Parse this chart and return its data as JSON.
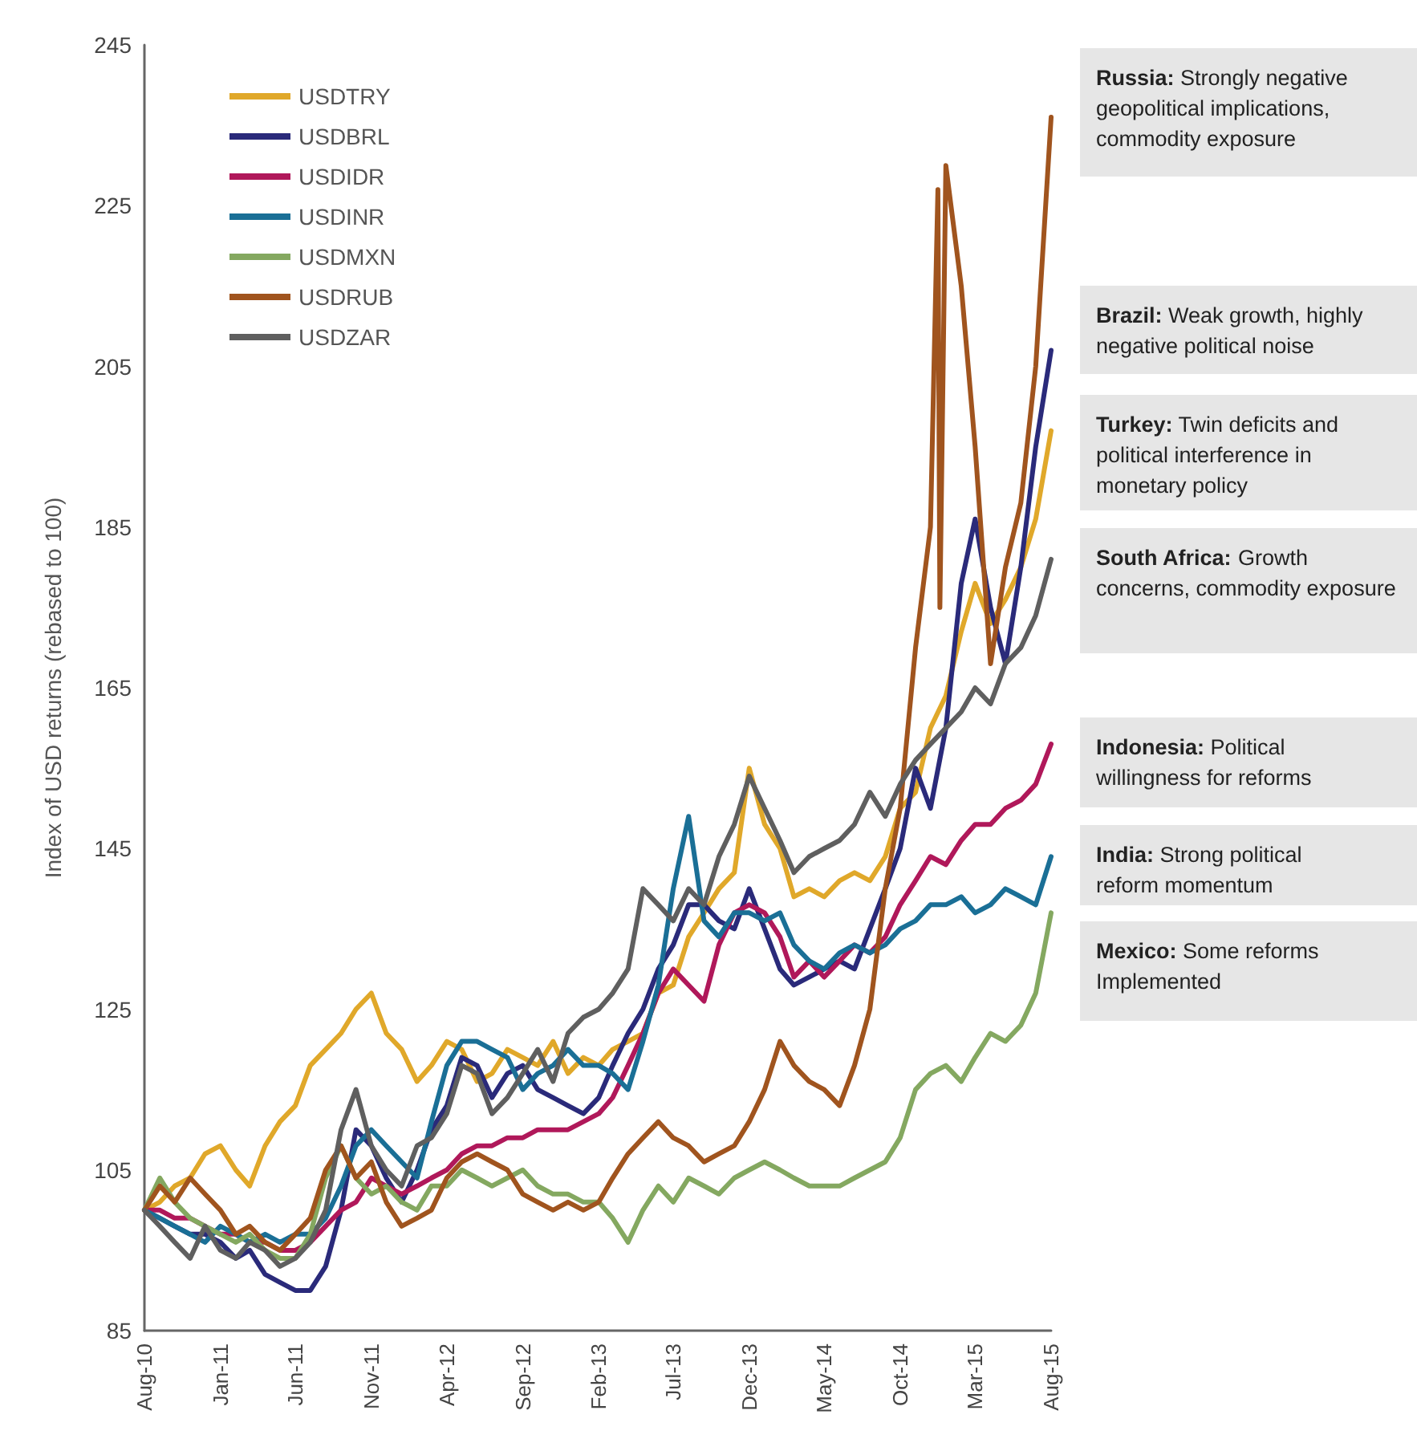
{
  "chart_data": {
    "type": "line",
    "ylabel": "Index of USD returns (rebased to 100)",
    "x": [
      "2010-08",
      "2010-09",
      "2010-10",
      "2010-11",
      "2010-12",
      "2011-01",
      "2011-02",
      "2011-03",
      "2011-04",
      "2011-05",
      "2011-06",
      "2011-07",
      "2011-08",
      "2011-09",
      "2011-10",
      "2011-11",
      "2011-12",
      "2012-01",
      "2012-02",
      "2012-03",
      "2012-04",
      "2012-05",
      "2012-06",
      "2012-07",
      "2012-08",
      "2012-09",
      "2012-10",
      "2012-11",
      "2012-12",
      "2013-01",
      "2013-02",
      "2013-03",
      "2013-04",
      "2013-05",
      "2013-06",
      "2013-07",
      "2013-08",
      "2013-09",
      "2013-10",
      "2013-11",
      "2013-12",
      "2014-01",
      "2014-02",
      "2014-03",
      "2014-04",
      "2014-05",
      "2014-06",
      "2014-07",
      "2014-08",
      "2014-09",
      "2014-10",
      "2014-11",
      "2014-12",
      "2015-01",
      "2015-02",
      "2015-03",
      "2015-04",
      "2015-05",
      "2015-06",
      "2015-07",
      "2015-08"
    ],
    "series": [
      {
        "name": "USDTRY",
        "color": "#e0a82a",
        "values": [
          100,
          101,
          103,
          104,
          107,
          108,
          105,
          103,
          108,
          111,
          113,
          118,
          120,
          122,
          125,
          127,
          122,
          120,
          116,
          118,
          121,
          120,
          116,
          117,
          120,
          119,
          118,
          121,
          117,
          119,
          118,
          120,
          121,
          122,
          127,
          128,
          134,
          137,
          140,
          142,
          155,
          148,
          145,
          139,
          140,
          139,
          141,
          142,
          141,
          144,
          150,
          152,
          160,
          164,
          172,
          178,
          173,
          176,
          180,
          186,
          197
        ]
      },
      {
        "name": "USDBRL",
        "color": "#2a2a7a",
        "values": [
          100,
          99,
          98,
          97,
          97,
          96,
          94,
          95,
          92,
          91,
          90,
          90,
          93,
          100,
          110,
          108,
          104,
          101,
          105,
          110,
          113,
          119,
          118,
          114,
          117,
          118,
          115,
          114,
          113,
          112,
          114,
          118,
          122,
          125,
          130,
          133,
          138,
          138,
          136,
          135,
          140,
          135,
          130,
          128,
          129,
          130,
          131,
          130,
          135,
          140,
          145,
          155,
          150,
          160,
          178,
          186,
          175,
          168,
          180,
          195,
          207
        ]
      },
      {
        "name": "USDIDR",
        "color": "#b0185a",
        "values": [
          100,
          100,
          99,
          99,
          98,
          97,
          97,
          96,
          96,
          95,
          95,
          96,
          98,
          100,
          101,
          104,
          103,
          102,
          103,
          104,
          105,
          107,
          108,
          108,
          109,
          109,
          110,
          110,
          110,
          111,
          112,
          114,
          118,
          122,
          127,
          130,
          128,
          126,
          133,
          137,
          138,
          137,
          134,
          129,
          131,
          129,
          131,
          133,
          132,
          134,
          138,
          141,
          144,
          143,
          146,
          148,
          148,
          150,
          151,
          153,
          158
        ]
      },
      {
        "name": "USDINR",
        "color": "#1a6f96",
        "values": [
          100,
          99,
          98,
          97,
          96,
          98,
          97,
          96,
          97,
          96,
          97,
          97,
          99,
          103,
          108,
          110,
          108,
          106,
          104,
          111,
          118,
          121,
          121,
          120,
          119,
          115,
          117,
          118,
          120,
          118,
          118,
          117,
          115,
          121,
          128,
          140,
          149,
          136,
          134,
          137,
          137,
          136,
          137,
          133,
          131,
          130,
          132,
          133,
          132,
          133,
          135,
          136,
          138,
          138,
          139,
          137,
          138,
          140,
          139,
          138,
          144
        ]
      },
      {
        "name": "USDMXN",
        "color": "#84a860",
        "values": [
          100,
          104,
          101,
          99,
          98,
          97,
          96,
          97,
          95,
          94,
          94,
          97,
          104,
          108,
          104,
          102,
          103,
          101,
          100,
          103,
          103,
          105,
          104,
          103,
          104,
          105,
          103,
          102,
          102,
          101,
          101,
          99,
          96,
          100,
          103,
          101,
          104,
          103,
          102,
          104,
          105,
          106,
          105,
          104,
          103,
          103,
          103,
          104,
          105,
          106,
          109,
          115,
          117,
          118,
          116,
          119,
          122,
          121,
          123,
          127,
          137
        ]
      },
      {
        "name": "USDRUB",
        "color": "#a0541e",
        "x": [
          "2010-08",
          "2010-09",
          "2010-10",
          "2010-11",
          "2010-12",
          "2011-01",
          "2011-02",
          "2011-03",
          "2011-04",
          "2011-05",
          "2011-06",
          "2011-07",
          "2011-08",
          "2011-09",
          "2011-10",
          "2011-11",
          "2011-12",
          "2012-01",
          "2012-02",
          "2012-03",
          "2012-04",
          "2012-05",
          "2012-06",
          "2012-07",
          "2012-08",
          "2012-09",
          "2012-10",
          "2012-11",
          "2012-12",
          "2013-01",
          "2013-02",
          "2013-03",
          "2013-04",
          "2013-05",
          "2013-06",
          "2013-07",
          "2013-08",
          "2013-09",
          "2013-10",
          "2013-11",
          "2013-12",
          "2014-01",
          "2014-02",
          "2014-03",
          "2014-04",
          "2014-05",
          "2014-06",
          "2014-07",
          "2014-08",
          "2014-09",
          "2014-10",
          "2014-11",
          "2014-12",
          "2014-12-16",
          "2014-12-20",
          "2015-01",
          "2015-02",
          "2015-03",
          "2015-04",
          "2015-05",
          "2015-06",
          "2015-07",
          "2015-08"
        ],
        "values": [
          100,
          103,
          101,
          104,
          102,
          100,
          97,
          98,
          96,
          95,
          97,
          99,
          105,
          108,
          104,
          106,
          101,
          98,
          99,
          100,
          104,
          106,
          107,
          106,
          105,
          102,
          101,
          100,
          101,
          100,
          101,
          104,
          107,
          109,
          111,
          109,
          108,
          106,
          107,
          108,
          111,
          115,
          121,
          118,
          116,
          115,
          113,
          118,
          125,
          140,
          150,
          170,
          185,
          227,
          175,
          230,
          215,
          195,
          168,
          180,
          188,
          205,
          236
        ]
      },
      {
        "name": "USDZAR",
        "color": "#5f5f5f",
        "values": [
          100,
          98,
          96,
          94,
          98,
          95,
          94,
          96,
          95,
          93,
          94,
          96,
          100,
          110,
          115,
          108,
          105,
          103,
          108,
          109,
          112,
          118,
          117,
          112,
          114,
          117,
          120,
          116,
          122,
          124,
          125,
          127,
          130,
          140,
          138,
          136,
          140,
          138,
          144,
          148,
          154,
          150,
          146,
          142,
          144,
          145,
          146,
          148,
          152,
          149,
          153,
          156,
          158,
          160,
          162,
          165,
          163,
          168,
          170,
          174,
          181
        ]
      }
    ],
    "xlim": [
      "2010-08",
      "2015-08"
    ],
    "xticks": [
      {
        "value": "2010-08",
        "label": "Aug-10"
      },
      {
        "value": "2011-01",
        "label": "Jan-11"
      },
      {
        "value": "2011-06",
        "label": "Jun-11"
      },
      {
        "value": "2011-11",
        "label": "Nov-11"
      },
      {
        "value": "2012-04",
        "label": "Apr-12"
      },
      {
        "value": "2012-09",
        "label": "Sep-12"
      },
      {
        "value": "2013-02",
        "label": "Feb-13"
      },
      {
        "value": "2013-07",
        "label": "Jul-13"
      },
      {
        "value": "2013-12",
        "label": "Dec-13"
      },
      {
        "value": "2014-05",
        "label": "May-14"
      },
      {
        "value": "2014-10",
        "label": "Oct-14"
      },
      {
        "value": "2015-03",
        "label": "Mar-15"
      },
      {
        "value": "2015-08",
        "label": "Aug-15"
      }
    ],
    "ylim": [
      85,
      245
    ],
    "yticks": [
      85,
      105,
      125,
      145,
      165,
      185,
      205,
      225,
      245
    ],
    "grid": false,
    "legend": "top left",
    "marker": "none",
    "line_style": "solid",
    "annotations": [
      "Russia: Strongly negative geopolitical implications, commodity exposure",
      "Brazil: Weak growth, highly negative political noise",
      "Turkey: Twin deficits and political interference in monetary policy",
      "South Africa: Growth concerns, commodity exposure",
      "Indonesia: Political willingness for reforms",
      "India: Strong political reform momentum",
      "Mexico: Some reforms Implemented"
    ]
  }
}
